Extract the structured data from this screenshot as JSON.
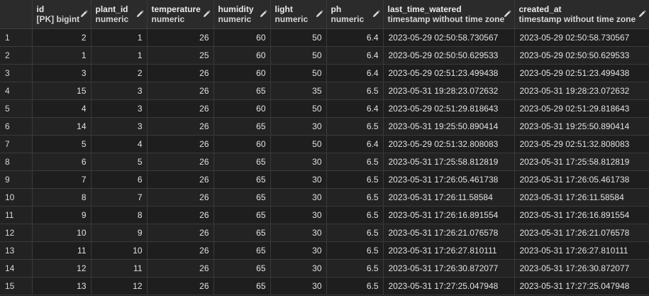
{
  "columns": [
    {
      "name": "id",
      "type": "[PK] bigint"
    },
    {
      "name": "plant_id",
      "type": "numeric"
    },
    {
      "name": "temperature",
      "type": "numeric"
    },
    {
      "name": "humidity",
      "type": "numeric"
    },
    {
      "name": "light",
      "type": "numeric"
    },
    {
      "name": "ph",
      "type": "numeric"
    },
    {
      "name": "last_time_watered",
      "type": "timestamp without time zone"
    },
    {
      "name": "created_at",
      "type": "timestamp without time zone"
    }
  ],
  "rows": [
    [
      "1",
      "2",
      "1",
      "26",
      "60",
      "50",
      "6.4",
      "2023-05-29 02:50:58.730567",
      "2023-05-29 02:50:58.730567"
    ],
    [
      "2",
      "1",
      "1",
      "25",
      "60",
      "50",
      "6.4",
      "2023-05-29 02:50:50.629533",
      "2023-05-29 02:50:50.629533"
    ],
    [
      "3",
      "3",
      "2",
      "26",
      "60",
      "50",
      "6.4",
      "2023-05-29 02:51:23.499438",
      "2023-05-29 02:51:23.499438"
    ],
    [
      "4",
      "15",
      "3",
      "26",
      "65",
      "35",
      "6.5",
      "2023-05-31 19:28:23.072632",
      "2023-05-31 19:28:23.072632"
    ],
    [
      "5",
      "4",
      "3",
      "26",
      "60",
      "50",
      "6.4",
      "2023-05-29 02:51:29.818643",
      "2023-05-29 02:51:29.818643"
    ],
    [
      "6",
      "14",
      "3",
      "26",
      "65",
      "30",
      "6.5",
      "2023-05-31 19:25:50.890414",
      "2023-05-31 19:25:50.890414"
    ],
    [
      "7",
      "5",
      "4",
      "26",
      "60",
      "50",
      "6.4",
      "2023-05-29 02:51:32.808083",
      "2023-05-29 02:51:32.808083"
    ],
    [
      "8",
      "6",
      "5",
      "26",
      "65",
      "30",
      "6.5",
      "2023-05-31 17:25:58.812819",
      "2023-05-31 17:25:58.812819"
    ],
    [
      "9",
      "7",
      "6",
      "26",
      "65",
      "30",
      "6.5",
      "2023-05-31 17:26:05.461738",
      "2023-05-31 17:26:05.461738"
    ],
    [
      "10",
      "8",
      "7",
      "26",
      "65",
      "30",
      "6.5",
      "2023-05-31 17:26:11.58584",
      "2023-05-31 17:26:11.58584"
    ],
    [
      "11",
      "9",
      "8",
      "26",
      "65",
      "30",
      "6.5",
      "2023-05-31 17:26:16.891554",
      "2023-05-31 17:26:16.891554"
    ],
    [
      "12",
      "10",
      "9",
      "26",
      "65",
      "30",
      "6.5",
      "2023-05-31 17:26:21.076578",
      "2023-05-31 17:26:21.076578"
    ],
    [
      "13",
      "11",
      "10",
      "26",
      "65",
      "30",
      "6.5",
      "2023-05-31 17:26:27.810111",
      "2023-05-31 17:26:27.810111"
    ],
    [
      "14",
      "12",
      "11",
      "26",
      "65",
      "30",
      "6.5",
      "2023-05-31 17:26:30.872077",
      "2023-05-31 17:26:30.872077"
    ],
    [
      "15",
      "13",
      "12",
      "26",
      "65",
      "30",
      "6.5",
      "2023-05-31 17:27:25.047948",
      "2023-05-31 17:27:25.047948"
    ]
  ],
  "icons": {
    "column_edit": "pencil-icon"
  },
  "colors": {
    "background": "#1e1e1e",
    "header_background": "#2b2b2b",
    "grid_line": "#3a3a3a",
    "text": "#e2e2e2"
  }
}
